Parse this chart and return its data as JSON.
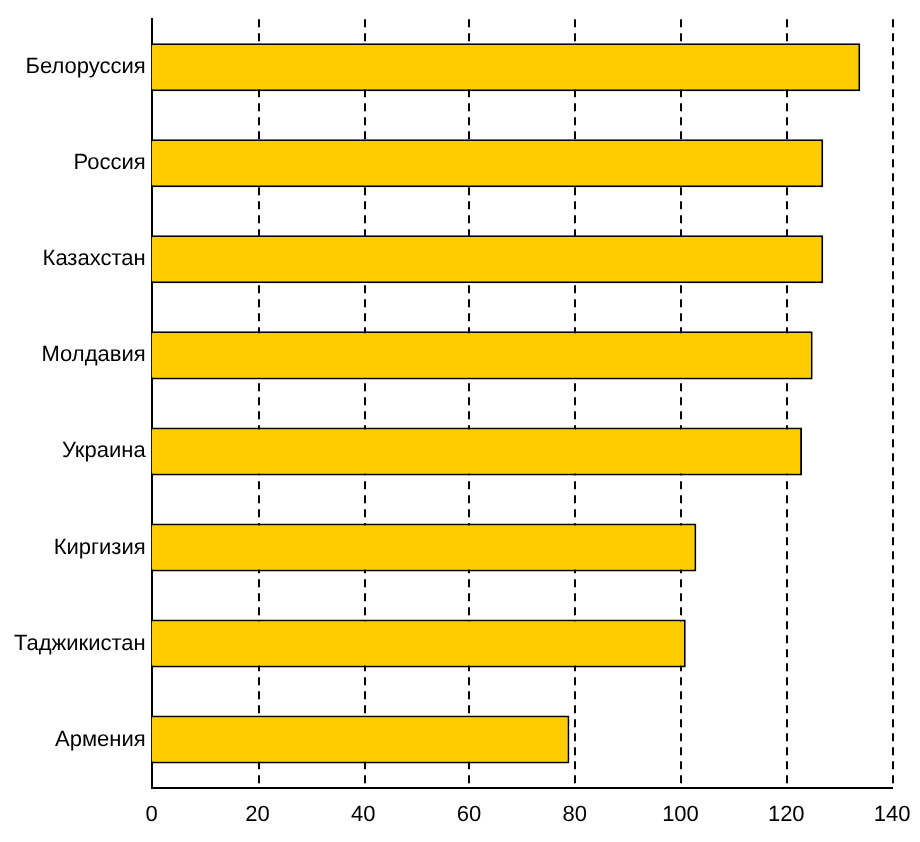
{
  "chart_data": {
    "type": "bar",
    "orientation": "horizontal",
    "categories": [
      "Белоруссия",
      "Россия",
      "Казахстан",
      "Молдавия",
      "Украина",
      "Киргизия",
      "Таджикистан",
      "Армения"
    ],
    "values": [
      134,
      127,
      127,
      125,
      123,
      103,
      101,
      79
    ],
    "color": "#ffcc00",
    "xlim": [
      0,
      140
    ],
    "xticks": [
      0,
      20,
      40,
      60,
      80,
      100,
      120,
      140
    ],
    "grid": "x",
    "line_style": "dashed",
    "legend": false
  }
}
